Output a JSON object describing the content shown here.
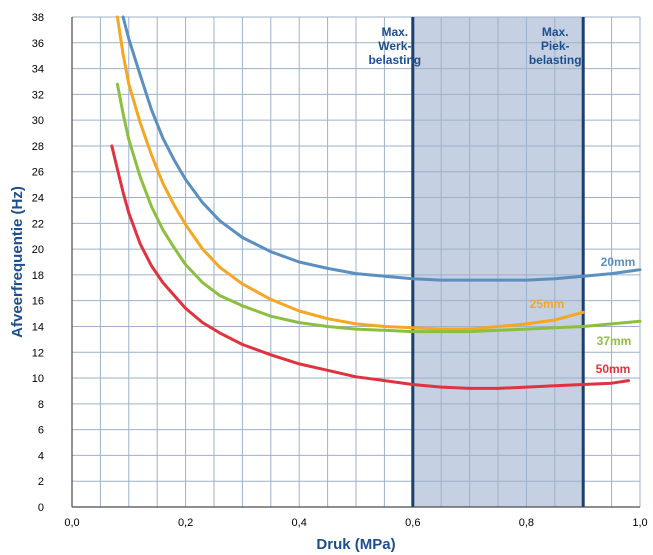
{
  "chart_data": {
    "type": "line",
    "xlabel": "Druk (MPa)",
    "ylabel": "Afveerfrequentie (Hz)",
    "xlim": [
      0,
      1.0
    ],
    "ylim": [
      0,
      38
    ],
    "grid": true,
    "x_ticks": [
      {
        "value": 0.0,
        "label": "0,0"
      },
      {
        "value": 0.2,
        "label": "0,2"
      },
      {
        "value": 0.4,
        "label": "0,4"
      },
      {
        "value": 0.6,
        "label": "0,6"
      },
      {
        "value": 0.8,
        "label": "0,8"
      },
      {
        "value": 1.0,
        "label": "1,0"
      }
    ],
    "y_ticks": [
      {
        "value": 0,
        "label": "0"
      },
      {
        "value": 2,
        "label": "2"
      },
      {
        "value": 4,
        "label": "4"
      },
      {
        "value": 6,
        "label": "6"
      },
      {
        "value": 8,
        "label": "8"
      },
      {
        "value": 10,
        "label": "10"
      },
      {
        "value": 12,
        "label": "12"
      },
      {
        "value": 14,
        "label": "14"
      },
      {
        "value": 16,
        "label": "16"
      },
      {
        "value": 18,
        "label": "18"
      },
      {
        "value": 20,
        "label": "20"
      },
      {
        "value": 22,
        "label": "22"
      },
      {
        "value": 24,
        "label": "24"
      },
      {
        "value": 26,
        "label": "26"
      },
      {
        "value": 28,
        "label": "28"
      },
      {
        "value": 30,
        "label": "30"
      },
      {
        "value": 32,
        "label": "32"
      },
      {
        "value": 34,
        "label": "34"
      },
      {
        "value": 36,
        "label": "36"
      },
      {
        "value": 38,
        "label": "38"
      }
    ],
    "shaded_region": {
      "x_start": 0.6,
      "x_end": 0.9,
      "color": "#c5d0e3",
      "border_color": "#1b3f6e",
      "start_label": [
        "Max.",
        "Werk-",
        "belasting"
      ],
      "end_label": [
        "Max.",
        "Piek-",
        "belasting"
      ]
    },
    "series": [
      {
        "name": "20mm",
        "color": "#5b8fc0",
        "points": [
          [
            0.09,
            38
          ],
          [
            0.1,
            36.3
          ],
          [
            0.12,
            33.5
          ],
          [
            0.14,
            30.8
          ],
          [
            0.16,
            28.6
          ],
          [
            0.18,
            26.9
          ],
          [
            0.2,
            25.4
          ],
          [
            0.23,
            23.6
          ],
          [
            0.26,
            22.2
          ],
          [
            0.3,
            20.9
          ],
          [
            0.35,
            19.8
          ],
          [
            0.4,
            19.0
          ],
          [
            0.45,
            18.5
          ],
          [
            0.5,
            18.1
          ],
          [
            0.55,
            17.9
          ],
          [
            0.6,
            17.7
          ],
          [
            0.65,
            17.6
          ],
          [
            0.7,
            17.6
          ],
          [
            0.75,
            17.6
          ],
          [
            0.8,
            17.6
          ],
          [
            0.85,
            17.7
          ],
          [
            0.9,
            17.9
          ],
          [
            0.95,
            18.1
          ],
          [
            1.0,
            18.4
          ]
        ]
      },
      {
        "name": "25mm",
        "color": "#f5a623",
        "points": [
          [
            0.08,
            38
          ],
          [
            0.09,
            35.1
          ],
          [
            0.1,
            32.8
          ],
          [
            0.12,
            29.8
          ],
          [
            0.14,
            27.3
          ],
          [
            0.16,
            25.1
          ],
          [
            0.18,
            23.4
          ],
          [
            0.2,
            21.9
          ],
          [
            0.23,
            20.0
          ],
          [
            0.26,
            18.6
          ],
          [
            0.3,
            17.3
          ],
          [
            0.35,
            16.1
          ],
          [
            0.4,
            15.2
          ],
          [
            0.45,
            14.6
          ],
          [
            0.5,
            14.2
          ],
          [
            0.55,
            14.0
          ],
          [
            0.6,
            13.9
          ],
          [
            0.65,
            13.8
          ],
          [
            0.7,
            13.8
          ],
          [
            0.75,
            14.0
          ],
          [
            0.8,
            14.2
          ],
          [
            0.85,
            14.5
          ],
          [
            0.9,
            15.1
          ]
        ]
      },
      {
        "name": "37mm",
        "color": "#8cbf3f",
        "points": [
          [
            0.08,
            32.8
          ],
          [
            0.09,
            30.5
          ],
          [
            0.1,
            28.5
          ],
          [
            0.12,
            25.6
          ],
          [
            0.14,
            23.3
          ],
          [
            0.16,
            21.5
          ],
          [
            0.18,
            20.1
          ],
          [
            0.2,
            18.8
          ],
          [
            0.23,
            17.4
          ],
          [
            0.26,
            16.4
          ],
          [
            0.3,
            15.6
          ],
          [
            0.35,
            14.8
          ],
          [
            0.4,
            14.3
          ],
          [
            0.45,
            14.0
          ],
          [
            0.5,
            13.8
          ],
          [
            0.55,
            13.7
          ],
          [
            0.6,
            13.6
          ],
          [
            0.65,
            13.6
          ],
          [
            0.7,
            13.6
          ],
          [
            0.75,
            13.7
          ],
          [
            0.8,
            13.8
          ],
          [
            0.85,
            13.9
          ],
          [
            0.9,
            14.0
          ],
          [
            0.95,
            14.2
          ],
          [
            1.0,
            14.4
          ]
        ]
      },
      {
        "name": "50mm",
        "color": "#e0323f",
        "points": [
          [
            0.07,
            28.0
          ],
          [
            0.08,
            26.2
          ],
          [
            0.09,
            24.4
          ],
          [
            0.1,
            22.8
          ],
          [
            0.12,
            20.4
          ],
          [
            0.14,
            18.7
          ],
          [
            0.16,
            17.4
          ],
          [
            0.18,
            16.4
          ],
          [
            0.2,
            15.4
          ],
          [
            0.23,
            14.3
          ],
          [
            0.26,
            13.5
          ],
          [
            0.3,
            12.6
          ],
          [
            0.35,
            11.8
          ],
          [
            0.4,
            11.1
          ],
          [
            0.45,
            10.6
          ],
          [
            0.5,
            10.1
          ],
          [
            0.55,
            9.8
          ],
          [
            0.6,
            9.5
          ],
          [
            0.65,
            9.3
          ],
          [
            0.7,
            9.2
          ],
          [
            0.75,
            9.2
          ],
          [
            0.8,
            9.3
          ],
          [
            0.85,
            9.4
          ],
          [
            0.9,
            9.5
          ],
          [
            0.95,
            9.6
          ],
          [
            0.98,
            9.8
          ]
        ]
      }
    ]
  }
}
